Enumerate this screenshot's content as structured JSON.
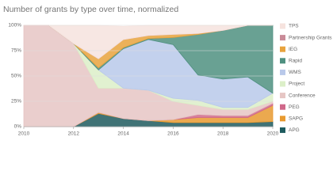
{
  "chart_data": {
    "type": "stacked_area",
    "title": "Number of grants by type over time, normalized",
    "x": [
      2010,
      2011,
      2012,
      2013,
      2014,
      2015,
      2016,
      2017,
      2018,
      2019,
      2020
    ],
    "xlim": [
      2010,
      2020
    ],
    "xticks": [
      2010,
      2012,
      2014,
      2016,
      2018,
      2020
    ],
    "ylim": [
      0,
      100
    ],
    "yticks": [
      {
        "value": 0,
        "label": "0%"
      },
      {
        "value": 25,
        "label": "25%"
      },
      {
        "value": 50,
        "label": "50%"
      },
      {
        "value": 75,
        "label": "75%"
      },
      {
        "value": 100,
        "label": "100%"
      }
    ],
    "grid": true,
    "legend": "right",
    "series": [
      {
        "name": "APG",
        "color": "#1e5b5e",
        "values": [
          0,
          0,
          0,
          13,
          8,
          6,
          4,
          4,
          4,
          4,
          5
        ]
      },
      {
        "name": "SAPG",
        "color": "#e89a30",
        "values": [
          0,
          0,
          0,
          1,
          0,
          0,
          3,
          5,
          5,
          5,
          16
        ]
      },
      {
        "name": "PEG",
        "color": "#d0688a",
        "values": [
          0,
          0,
          0,
          0,
          0,
          0,
          0,
          3,
          2,
          2,
          2
        ]
      },
      {
        "name": "Conference",
        "color": "#e6c6c4",
        "values": [
          100,
          100,
          82,
          24,
          30,
          30,
          18,
          9,
          6,
          6,
          2
        ]
      },
      {
        "name": "Project",
        "color": "#dcefc8",
        "values": [
          0,
          0,
          0,
          18,
          0,
          0,
          3,
          5,
          2,
          2,
          8
        ]
      },
      {
        "name": "WMS",
        "color": "#b9c9ea",
        "values": [
          0,
          0,
          0,
          0,
          39,
          50,
          53,
          25,
          28,
          30,
          0
        ]
      },
      {
        "name": "Rapid",
        "color": "#4f9080",
        "values": [
          0,
          0,
          0,
          2,
          1,
          1,
          7,
          40,
          48,
          51,
          67
        ]
      },
      {
        "name": "IEG",
        "color": "#e8a33d",
        "values": [
          0,
          0,
          0,
          9,
          8,
          3,
          3,
          1,
          0,
          0,
          0
        ]
      },
      {
        "name": "Partnership Grants",
        "color": "#c98b98",
        "values": [
          0,
          0,
          0,
          0,
          0,
          0,
          0,
          0,
          0,
          0,
          0
        ]
      },
      {
        "name": "TPS",
        "color": "#f6e3de",
        "values": [
          0,
          0,
          18,
          33,
          13,
          10,
          9,
          8,
          5,
          0,
          0
        ]
      }
    ]
  }
}
